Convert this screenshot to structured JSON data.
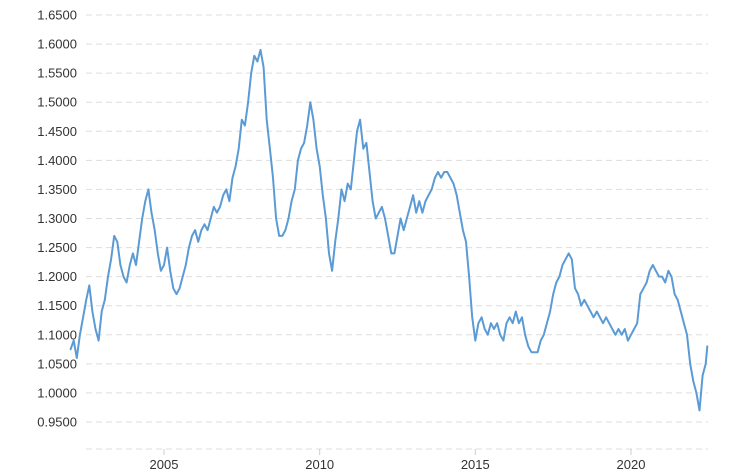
{
  "chart_data": {
    "type": "line",
    "title": "",
    "xlabel": "",
    "ylabel": "",
    "xlim": [
      2001.9,
      2022.5
    ],
    "ylim": [
      0.925,
      1.655
    ],
    "grid": "horizontal-dashed",
    "yticks": [
      "0.9500",
      "1.0000",
      "1.0500",
      "1.1000",
      "1.1500",
      "1.2000",
      "1.2500",
      "1.3000",
      "1.3500",
      "1.4000",
      "1.4500",
      "1.5000",
      "1.5500",
      "1.6000",
      "1.6500"
    ],
    "xticks": [
      "2005",
      "2010",
      "2015",
      "2020"
    ],
    "colors": {
      "line": "#5b9bd5",
      "grid": "#dddddd",
      "text": "#333333"
    },
    "series": [
      {
        "x": [
          2002.0,
          2002.1,
          2002.2,
          2002.3,
          2002.4,
          2002.5,
          2002.6,
          2002.7,
          2002.8,
          2002.9,
          2003.0,
          2003.1,
          2003.2,
          2003.3,
          2003.4,
          2003.5,
          2003.6,
          2003.7,
          2003.8,
          2003.9,
          2004.0,
          2004.1,
          2004.2,
          2004.3,
          2004.4,
          2004.5,
          2004.6,
          2004.7,
          2004.8,
          2004.9,
          2005.0,
          2005.1,
          2005.2,
          2005.3,
          2005.4,
          2005.5,
          2005.6,
          2005.7,
          2005.8,
          2005.9,
          2006.0,
          2006.1,
          2006.2,
          2006.3,
          2006.4,
          2006.5,
          2006.6,
          2006.7,
          2006.8,
          2006.9,
          2007.0,
          2007.1,
          2007.2,
          2007.3,
          2007.4,
          2007.5,
          2007.6,
          2007.7,
          2007.8,
          2007.9,
          2008.0,
          2008.1,
          2008.2,
          2008.3,
          2008.4,
          2008.5,
          2008.6,
          2008.7,
          2008.8,
          2008.9,
          2009.0,
          2009.1,
          2009.2,
          2009.3,
          2009.4,
          2009.5,
          2009.6,
          2009.7,
          2009.8,
          2009.9,
          2010.0,
          2010.1,
          2010.2,
          2010.3,
          2010.4,
          2010.5,
          2010.6,
          2010.7,
          2010.8,
          2010.9,
          2011.0,
          2011.1,
          2011.2,
          2011.3,
          2011.4,
          2011.5,
          2011.6,
          2011.7,
          2011.8,
          2011.9,
          2012.0,
          2012.1,
          2012.2,
          2012.3,
          2012.4,
          2012.5,
          2012.6,
          2012.7,
          2012.8,
          2012.9,
          2013.0,
          2013.1,
          2013.2,
          2013.3,
          2013.4,
          2013.5,
          2013.6,
          2013.7,
          2013.8,
          2013.9,
          2014.0,
          2014.1,
          2014.2,
          2014.3,
          2014.4,
          2014.5,
          2014.6,
          2014.7,
          2014.8,
          2014.9,
          2015.0,
          2015.1,
          2015.2,
          2015.3,
          2015.4,
          2015.5,
          2015.6,
          2015.7,
          2015.8,
          2015.9,
          2016.0,
          2016.1,
          2016.2,
          2016.3,
          2016.4,
          2016.5,
          2016.6,
          2016.7,
          2016.8,
          2016.9,
          2017.0,
          2017.1,
          2017.2,
          2017.3,
          2017.4,
          2017.5,
          2017.6,
          2017.7,
          2017.8,
          2017.9,
          2018.0,
          2018.1,
          2018.2,
          2018.3,
          2018.4,
          2018.5,
          2018.6,
          2018.7,
          2018.8,
          2018.9,
          2019.0,
          2019.1,
          2019.2,
          2019.3,
          2019.4,
          2019.5,
          2019.6,
          2019.7,
          2019.8,
          2019.9,
          2020.0,
          2020.1,
          2020.2,
          2020.3,
          2020.4,
          2020.5,
          2020.6,
          2020.7,
          2020.8,
          2020.9,
          2021.0,
          2021.1,
          2021.2,
          2021.3,
          2021.4,
          2021.5,
          2021.6,
          2021.7,
          2021.8,
          2021.9,
          2022.0,
          2022.1,
          2022.2,
          2022.3,
          2022.4,
          2022.45
        ],
        "values": [
          1.075,
          1.09,
          1.06,
          1.1,
          1.13,
          1.16,
          1.185,
          1.14,
          1.11,
          1.09,
          1.14,
          1.16,
          1.2,
          1.23,
          1.27,
          1.26,
          1.22,
          1.2,
          1.19,
          1.22,
          1.24,
          1.22,
          1.26,
          1.3,
          1.33,
          1.35,
          1.31,
          1.28,
          1.24,
          1.21,
          1.22,
          1.25,
          1.21,
          1.18,
          1.17,
          1.18,
          1.2,
          1.22,
          1.25,
          1.27,
          1.28,
          1.26,
          1.28,
          1.29,
          1.28,
          1.3,
          1.32,
          1.31,
          1.32,
          1.34,
          1.35,
          1.33,
          1.37,
          1.39,
          1.42,
          1.47,
          1.46,
          1.5,
          1.55,
          1.58,
          1.57,
          1.59,
          1.56,
          1.47,
          1.42,
          1.37,
          1.3,
          1.27,
          1.27,
          1.28,
          1.3,
          1.33,
          1.35,
          1.4,
          1.42,
          1.43,
          1.46,
          1.5,
          1.47,
          1.42,
          1.39,
          1.34,
          1.3,
          1.24,
          1.21,
          1.26,
          1.3,
          1.35,
          1.33,
          1.36,
          1.35,
          1.4,
          1.45,
          1.47,
          1.42,
          1.43,
          1.38,
          1.33,
          1.3,
          1.31,
          1.32,
          1.3,
          1.27,
          1.24,
          1.24,
          1.27,
          1.3,
          1.28,
          1.3,
          1.32,
          1.34,
          1.31,
          1.33,
          1.31,
          1.33,
          1.34,
          1.35,
          1.37,
          1.38,
          1.37,
          1.38,
          1.38,
          1.37,
          1.36,
          1.34,
          1.31,
          1.28,
          1.26,
          1.2,
          1.13,
          1.09,
          1.12,
          1.13,
          1.11,
          1.1,
          1.12,
          1.11,
          1.12,
          1.1,
          1.09,
          1.12,
          1.13,
          1.12,
          1.14,
          1.12,
          1.13,
          1.1,
          1.08,
          1.07,
          1.07,
          1.07,
          1.09,
          1.1,
          1.12,
          1.14,
          1.17,
          1.19,
          1.2,
          1.22,
          1.23,
          1.24,
          1.23,
          1.18,
          1.17,
          1.15,
          1.16,
          1.15,
          1.14,
          1.13,
          1.14,
          1.13,
          1.12,
          1.13,
          1.12,
          1.11,
          1.1,
          1.11,
          1.1,
          1.11,
          1.09,
          1.1,
          1.11,
          1.12,
          1.17,
          1.18,
          1.19,
          1.21,
          1.22,
          1.21,
          1.2,
          1.2,
          1.19,
          1.21,
          1.2,
          1.17,
          1.16,
          1.14,
          1.12,
          1.1,
          1.05,
          1.02,
          1.0,
          0.97,
          1.03,
          1.05,
          1.08
        ]
      }
    ]
  }
}
